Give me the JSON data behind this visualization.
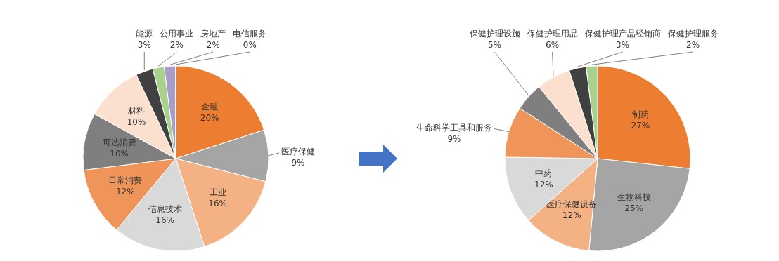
{
  "chart_data": [
    {
      "type": "pie",
      "categories": [
        "金融",
        "医疗保健",
        "工业",
        "信息技术",
        "日常消费",
        "可选消费",
        "材料",
        "能源",
        "公用事业",
        "房地产",
        "电信服务"
      ],
      "values": [
        20,
        9,
        16,
        16,
        12,
        10,
        10,
        3,
        2,
        2,
        0
      ],
      "value_labels": [
        "20%",
        "9%",
        "16%",
        "16%",
        "12%",
        "10%",
        "10%",
        "3%",
        "2%",
        "2%",
        "0%"
      ],
      "colors": [
        "#ed7d31",
        "#a5a5a5",
        "#f4b183",
        "#d9d9d9",
        "#f0955a",
        "#7f7f7f",
        "#fbe0d0",
        "#404040",
        "#a9d18e",
        "#a89cc8",
        "#4472c4"
      ]
    },
    {
      "type": "pie",
      "categories": [
        "制药",
        "生物科技",
        "医疗保健设备",
        "中药",
        "生命科学工具和服务",
        "保健护理设施",
        "保健护理用品",
        "保健护理产品经销商",
        "保健护理服务"
      ],
      "values": [
        27,
        25,
        12,
        12,
        9,
        5,
        6,
        3,
        2
      ],
      "value_labels": [
        "27%",
        "25%",
        "12%",
        "12%",
        "9%",
        "5%",
        "6%",
        "3%",
        "2%"
      ],
      "colors": [
        "#ed7d31",
        "#a5a5a5",
        "#f4b183",
        "#d9d9d9",
        "#f0955a",
        "#7f7f7f",
        "#fbe0d0",
        "#404040",
        "#a9d18e"
      ]
    }
  ]
}
